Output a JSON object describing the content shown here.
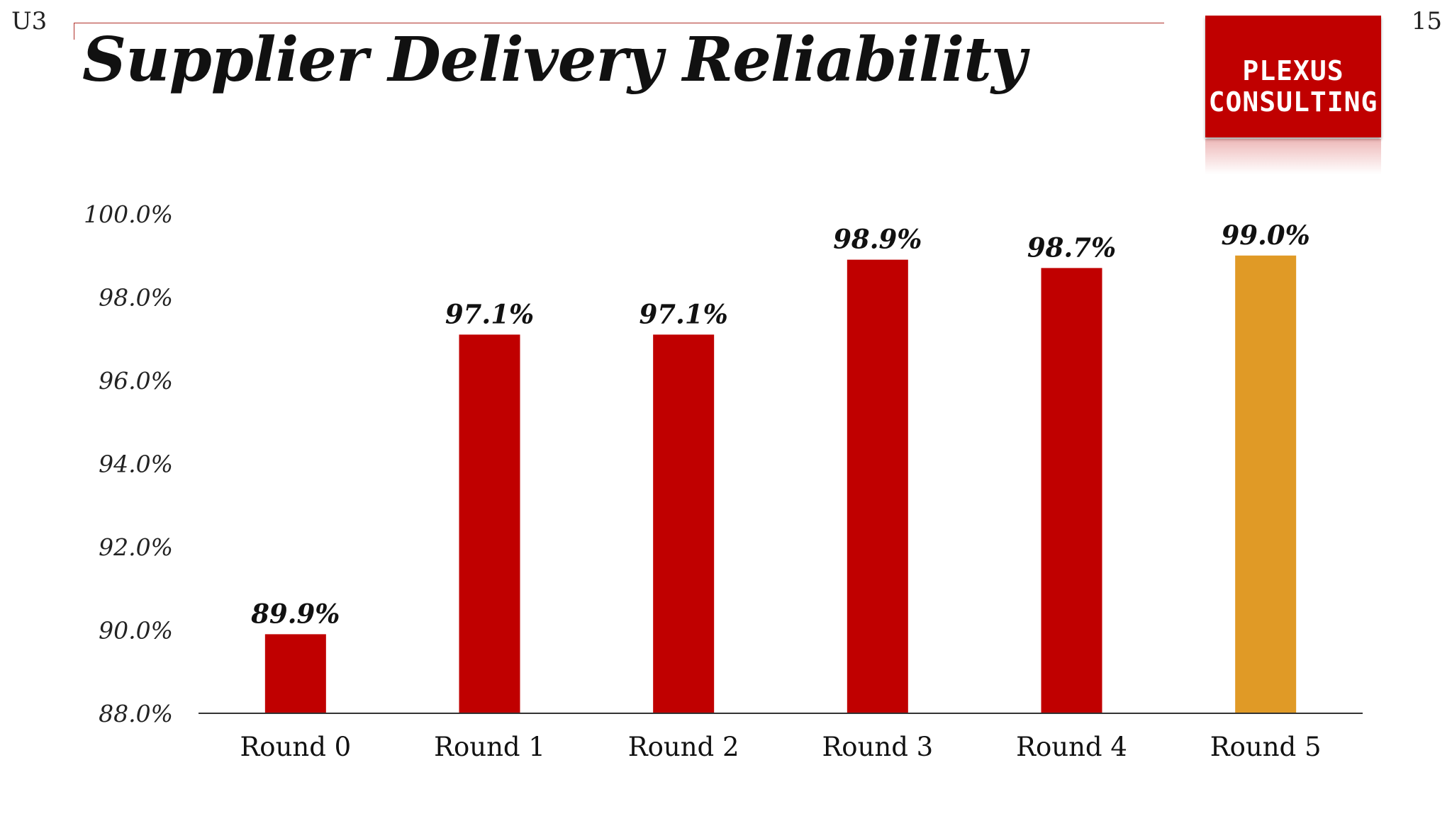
{
  "slide": {
    "corner_label": "U3",
    "page_number": "15",
    "title": "Supplier Delivery Reliability"
  },
  "logo": {
    "line1": "PLEXUS",
    "line2": "CONSULTING",
    "color": "#c00000"
  },
  "colors": {
    "bar": "#c00000",
    "highlight_bar": "#e09a26"
  },
  "chart_data": {
    "type": "bar",
    "title": "Supplier Delivery Reliability",
    "xlabel": "",
    "ylabel": "",
    "categories": [
      "Round 0",
      "Round 1",
      "Round 2",
      "Round 3",
      "Round 4",
      "Round 5"
    ],
    "values": [
      89.9,
      97.1,
      97.1,
      98.9,
      98.7,
      99.0
    ],
    "data_labels": [
      "89.9%",
      "97.1%",
      "97.1%",
      "98.9%",
      "98.7%",
      "99.0%"
    ],
    "highlight_index": 5,
    "ylim": [
      88.0,
      100.0
    ],
    "yticks": [
      88.0,
      90.0,
      92.0,
      94.0,
      96.0,
      98.0,
      100.0
    ],
    "ytick_labels": [
      "88.0%",
      "90.0%",
      "92.0%",
      "94.0%",
      "96.0%",
      "98.0%",
      "100.0%"
    ],
    "grid": false,
    "legend": "none"
  }
}
